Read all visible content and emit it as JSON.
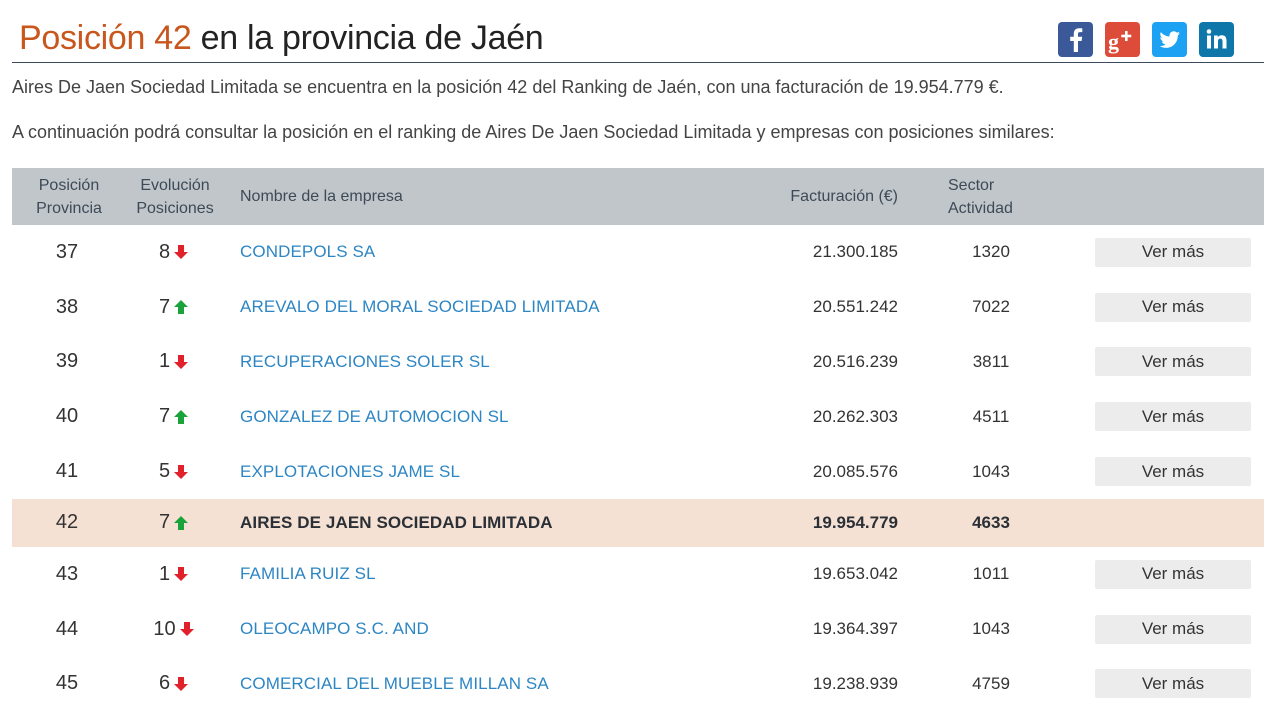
{
  "header": {
    "title_accent": "Posición 42",
    "title_rest": " en la provincia de Jaén"
  },
  "intro": {
    "line1": "Aires De Jaen Sociedad Limitada se encuentra en la posición 42 del Ranking de Jaén, con una facturación de 19.954.779 €.",
    "line2": "A continuación podrá consultar la posición en el ranking de Aires De Jaen Sociedad Limitada y empresas con posiciones similares:"
  },
  "social": [
    {
      "name": "facebook-icon",
      "color": "#3b5998"
    },
    {
      "name": "google-plus-icon",
      "color": "#dd4b39"
    },
    {
      "name": "twitter-icon",
      "color": "#1da1f2"
    },
    {
      "name": "linkedin-icon",
      "color": "#0e76a8"
    }
  ],
  "table": {
    "headers": {
      "pos_line1": "Posición",
      "pos_line2": "Provincia",
      "evo_line1": "Evolución",
      "evo_line2": "Posiciones",
      "name": "Nombre de la empresa",
      "fact": "Facturación (€)",
      "sector_line1": "Sector",
      "sector_line2": "Actividad"
    },
    "rows": [
      {
        "pos": "37",
        "evo": "8",
        "dir": "down",
        "name": "CONDEPOLS SA",
        "fact": "21.300.185",
        "sector": "1320",
        "btn": "Ver más"
      },
      {
        "pos": "38",
        "evo": "7",
        "dir": "up",
        "name": "AREVALO DEL MORAL SOCIEDAD LIMITADA",
        "fact": "20.551.242",
        "sector": "7022",
        "btn": "Ver más"
      },
      {
        "pos": "39",
        "evo": "1",
        "dir": "down",
        "name": "RECUPERACIONES SOLER SL",
        "fact": "20.516.239",
        "sector": "3811",
        "btn": "Ver más"
      },
      {
        "pos": "40",
        "evo": "7",
        "dir": "up",
        "name": "GONZALEZ DE AUTOMOCION SL",
        "fact": "20.262.303",
        "sector": "4511",
        "btn": "Ver más"
      },
      {
        "pos": "41",
        "evo": "5",
        "dir": "down",
        "name": "EXPLOTACIONES JAME SL",
        "fact": "20.085.576",
        "sector": "1043",
        "btn": "Ver más"
      },
      {
        "pos": "42",
        "evo": "7",
        "dir": "up",
        "name": "AIRES DE JAEN SOCIEDAD LIMITADA",
        "fact": "19.954.779",
        "sector": "4633",
        "btn": "",
        "highlight": true
      },
      {
        "pos": "43",
        "evo": "1",
        "dir": "down",
        "name": "FAMILIA RUIZ SL",
        "fact": "19.653.042",
        "sector": "1011",
        "btn": "Ver más"
      },
      {
        "pos": "44",
        "evo": "10",
        "dir": "down",
        "name": "OLEOCAMPO S.C. AND",
        "fact": "19.364.397",
        "sector": "1043",
        "btn": "Ver más"
      },
      {
        "pos": "45",
        "evo": "6",
        "dir": "down",
        "name": "COMERCIAL DEL MUEBLE MILLAN SA",
        "fact": "19.238.939",
        "sector": "4759",
        "btn": "Ver más"
      }
    ]
  },
  "colors": {
    "accent": "#c8561d",
    "link": "#2d86c4",
    "up": "#1aa33a",
    "down": "#e0202a",
    "highlight_row": "#f4e1d4",
    "header_bg": "#c1c6ca"
  }
}
